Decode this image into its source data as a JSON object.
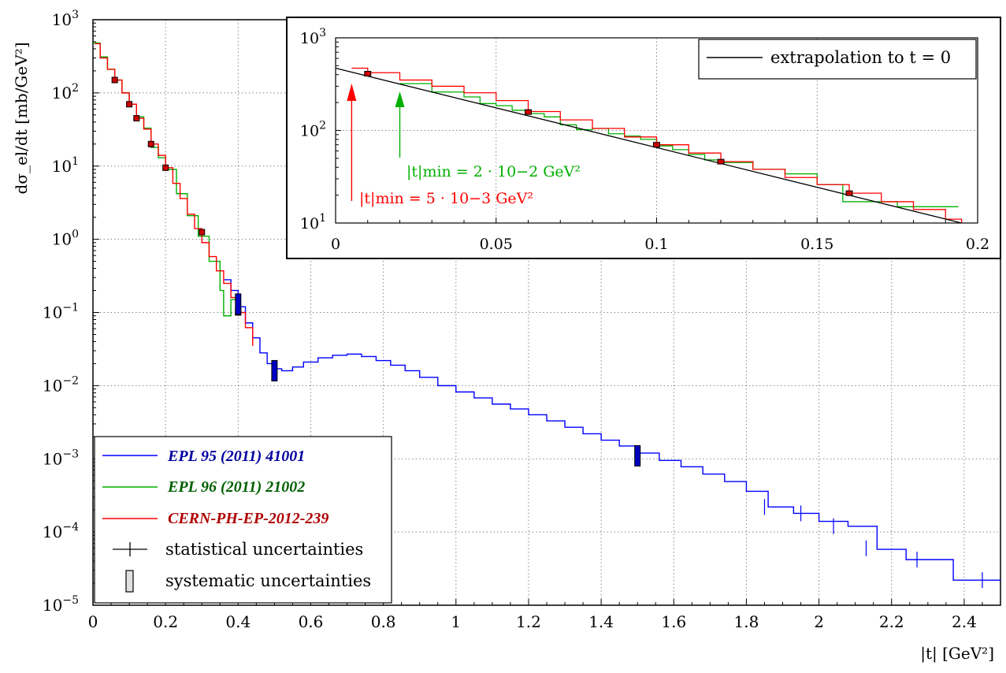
{
  "chart_data": [
    {
      "type": "line",
      "name": "main",
      "xlabel": "|t|   [GeV²]",
      "ylabel": "dσ_el/dt   [mb/GeV²]",
      "yscale": "log",
      "xlim": [
        0,
        2.5
      ],
      "ylim": [
        1e-05,
        1000
      ],
      "xticks": [
        0,
        0.2,
        0.4,
        0.6,
        0.8,
        1,
        1.2,
        1.4,
        1.6,
        1.8,
        2,
        2.2,
        2.4
      ],
      "xtick_labels": [
        "0",
        "0.2",
        "0.4",
        "0.6",
        "0.8",
        "1",
        "1.2",
        "1.4",
        "1.6",
        "1.8",
        "2",
        "2.2",
        "2.4"
      ],
      "ytick_exponents": [
        -5,
        -4,
        -3,
        -2,
        -1,
        0,
        1,
        2,
        3
      ],
      "ytick_base": "10",
      "grid": true,
      "series": [
        {
          "name": "EPL 95 (2011) 41001",
          "color": "#0000ff",
          "x": [
            0.36,
            0.38,
            0.4,
            0.42,
            0.44,
            0.46,
            0.48,
            0.5,
            0.52,
            0.55,
            0.58,
            0.62,
            0.66,
            0.7,
            0.74,
            0.78,
            0.82,
            0.86,
            0.9,
            0.95,
            1.0,
            1.05,
            1.1,
            1.15,
            1.2,
            1.25,
            1.3,
            1.35,
            1.4,
            1.45,
            1.5,
            1.56,
            1.62,
            1.68,
            1.74,
            1.8,
            1.86,
            1.93,
            2.0,
            2.08,
            2.16,
            2.24,
            2.37,
            2.5
          ],
          "y": [
            0.28,
            0.2,
            0.12,
            0.072,
            0.045,
            0.028,
            0.02,
            0.017,
            0.016,
            0.018,
            0.021,
            0.024,
            0.026,
            0.027,
            0.025,
            0.022,
            0.019,
            0.016,
            0.013,
            0.01,
            0.0082,
            0.0068,
            0.0056,
            0.0048,
            0.004,
            0.0033,
            0.0027,
            0.0022,
            0.0018,
            0.0015,
            0.0012,
            0.00095,
            0.00078,
            0.00062,
            0.00049,
            0.00036,
            0.00022,
            0.00018,
            0.00014,
            0.00012,
            5.8e-05,
            4.2e-05,
            2.2e-05,
            2.2e-05
          ],
          "stat_error_points": [
            [
              1.5,
              0.0011
            ],
            [
              1.85,
              0.00022
            ],
            [
              1.95,
              0.00018
            ],
            [
              2.04,
              0.00012
            ],
            [
              2.13,
              6e-05
            ],
            [
              2.27,
              4.2e-05
            ],
            [
              2.45,
              2.2e-05
            ]
          ]
        },
        {
          "name": "EPL 96 (2011) 21002",
          "color": "#00b000",
          "x": [
            0.0,
            0.02,
            0.04,
            0.06,
            0.08,
            0.1,
            0.12,
            0.14,
            0.16,
            0.18,
            0.2,
            0.23,
            0.26,
            0.29,
            0.32,
            0.35,
            0.36,
            0.38,
            0.4
          ],
          "y": [
            480,
            310,
            210,
            150,
            100,
            70,
            47,
            33,
            18,
            13,
            9,
            4.2,
            2.1,
            1.1,
            0.5,
            0.2,
            0.09,
            0.15,
            0.1
          ]
        },
        {
          "name": "CERN-PH-EP-2012-239",
          "color": "#ff0000",
          "x": [
            0.005,
            0.02,
            0.04,
            0.06,
            0.08,
            0.1,
            0.12,
            0.14,
            0.16,
            0.18,
            0.2,
            0.22,
            0.24,
            0.26,
            0.28,
            0.3,
            0.32,
            0.34,
            0.36,
            0.38,
            0.4,
            0.42,
            0.44
          ],
          "y": [
            470,
            300,
            210,
            150,
            100,
            70,
            45,
            32,
            20,
            14,
            9.5,
            5.8,
            3.6,
            2.2,
            1.4,
            0.9,
            0.58,
            0.37,
            0.25,
            0.16,
            0.1,
            0.062,
            0.035
          ]
        }
      ],
      "systematic_markers": [
        {
          "x": 0.06,
          "y": 150,
          "series": "CERN-PH-EP-2012-239"
        },
        {
          "x": 0.1,
          "y": 70,
          "series": "CERN-PH-EP-2012-239"
        },
        {
          "x": 0.12,
          "y": 45,
          "series": "CERN-PH-EP-2012-239"
        },
        {
          "x": 0.16,
          "y": 20,
          "series": "CERN-PH-EP-2012-239"
        },
        {
          "x": 0.2,
          "y": 9.5,
          "series": "CERN-PH-EP-2012-239"
        },
        {
          "x": 0.3,
          "y": 1.25,
          "series": "CERN-PH-EP-2012-239"
        },
        {
          "x": 0.4,
          "y": 0.1,
          "series": "CERN-PH-EP-2012-239"
        },
        {
          "x": 0.4,
          "y": 0.13,
          "series": "EPL 95 (2011) 41001"
        },
        {
          "x": 0.5,
          "y": 0.016,
          "series": "EPL 95 (2011) 41001"
        },
        {
          "x": 1.5,
          "y": 0.0011,
          "series": "EPL 95 (2011) 41001"
        }
      ],
      "legend": {
        "position": "bottom-left",
        "entries": [
          {
            "label": "EPL 95 (2011) 41001",
            "color": "#0000ff",
            "kind": "line"
          },
          {
            "label": "EPL 96 (2011) 21002",
            "color": "#00b000",
            "kind": "line"
          },
          {
            "label": "CERN-PH-EP-2012-239",
            "color": "#ff0000",
            "kind": "line"
          },
          {
            "label": "statistical uncertainties",
            "color": "#000000",
            "kind": "cross"
          },
          {
            "label": "systematic uncertainties",
            "color": "#000000",
            "kind": "box"
          }
        ]
      }
    },
    {
      "type": "line",
      "name": "inset",
      "yscale": "log",
      "xlim": [
        0,
        0.2
      ],
      "ylim": [
        10,
        1000
      ],
      "xticks": [
        0,
        0.05,
        0.1,
        0.15,
        0.2
      ],
      "xtick_labels": [
        "0",
        "0.05",
        "0.1",
        "0.15",
        "0.2"
      ],
      "ytick_exponents": [
        1,
        2,
        3
      ],
      "ytick_base": "10",
      "grid": true,
      "legend": {
        "position": "top-right",
        "entries": [
          {
            "label": "extrapolation to t = 0",
            "color": "#000000",
            "kind": "line"
          }
        ]
      },
      "series": [
        {
          "name": "extrapolation to t = 0",
          "color": "#000000",
          "x": [
            0,
            0.195
          ],
          "y": [
            470,
            10
          ]
        },
        {
          "name": "EPL 96 (2011) 21002",
          "color": "#00b000",
          "x": [
            0.02,
            0.03,
            0.04,
            0.045,
            0.05,
            0.055,
            0.06,
            0.065,
            0.07,
            0.075,
            0.08,
            0.085,
            0.09,
            0.095,
            0.1,
            0.105,
            0.11,
            0.115,
            0.12,
            0.13,
            0.14,
            0.15,
            0.158,
            0.175,
            0.194
          ],
          "y": [
            320,
            260,
            230,
            195,
            185,
            165,
            152,
            140,
            115,
            102,
            105,
            92,
            87,
            80,
            68,
            62,
            55,
            48,
            45,
            38,
            34,
            26,
            17,
            15,
            15
          ]
        },
        {
          "name": "CERN-PH-EP-2012-239",
          "color": "#ff0000",
          "x": [
            0.005,
            0.01,
            0.02,
            0.03,
            0.04,
            0.05,
            0.06,
            0.07,
            0.08,
            0.09,
            0.1,
            0.11,
            0.12,
            0.13,
            0.14,
            0.15,
            0.16,
            0.17,
            0.18,
            0.19,
            0.195
          ],
          "y": [
            470,
            420,
            350,
            300,
            255,
            210,
            160,
            130,
            105,
            85,
            70,
            57,
            46,
            38,
            31,
            26,
            21,
            17,
            14,
            11,
            10
          ]
        }
      ],
      "systematic_markers": [
        {
          "x": 0.01,
          "y": 410
        },
        {
          "x": 0.06,
          "y": 158
        },
        {
          "x": 0.1,
          "y": 70
        },
        {
          "x": 0.12,
          "y": 46
        },
        {
          "x": 0.16,
          "y": 21
        }
      ],
      "annotations": [
        {
          "text": "|t|min = 2 · 10−2 GeV²",
          "color": "#00b000",
          "x": 0.02,
          "arrow": "up"
        },
        {
          "text": "|t|min = 5 · 10−3 GeV²",
          "color": "#ff0000",
          "x": 0.005,
          "arrow": "up"
        }
      ]
    }
  ]
}
